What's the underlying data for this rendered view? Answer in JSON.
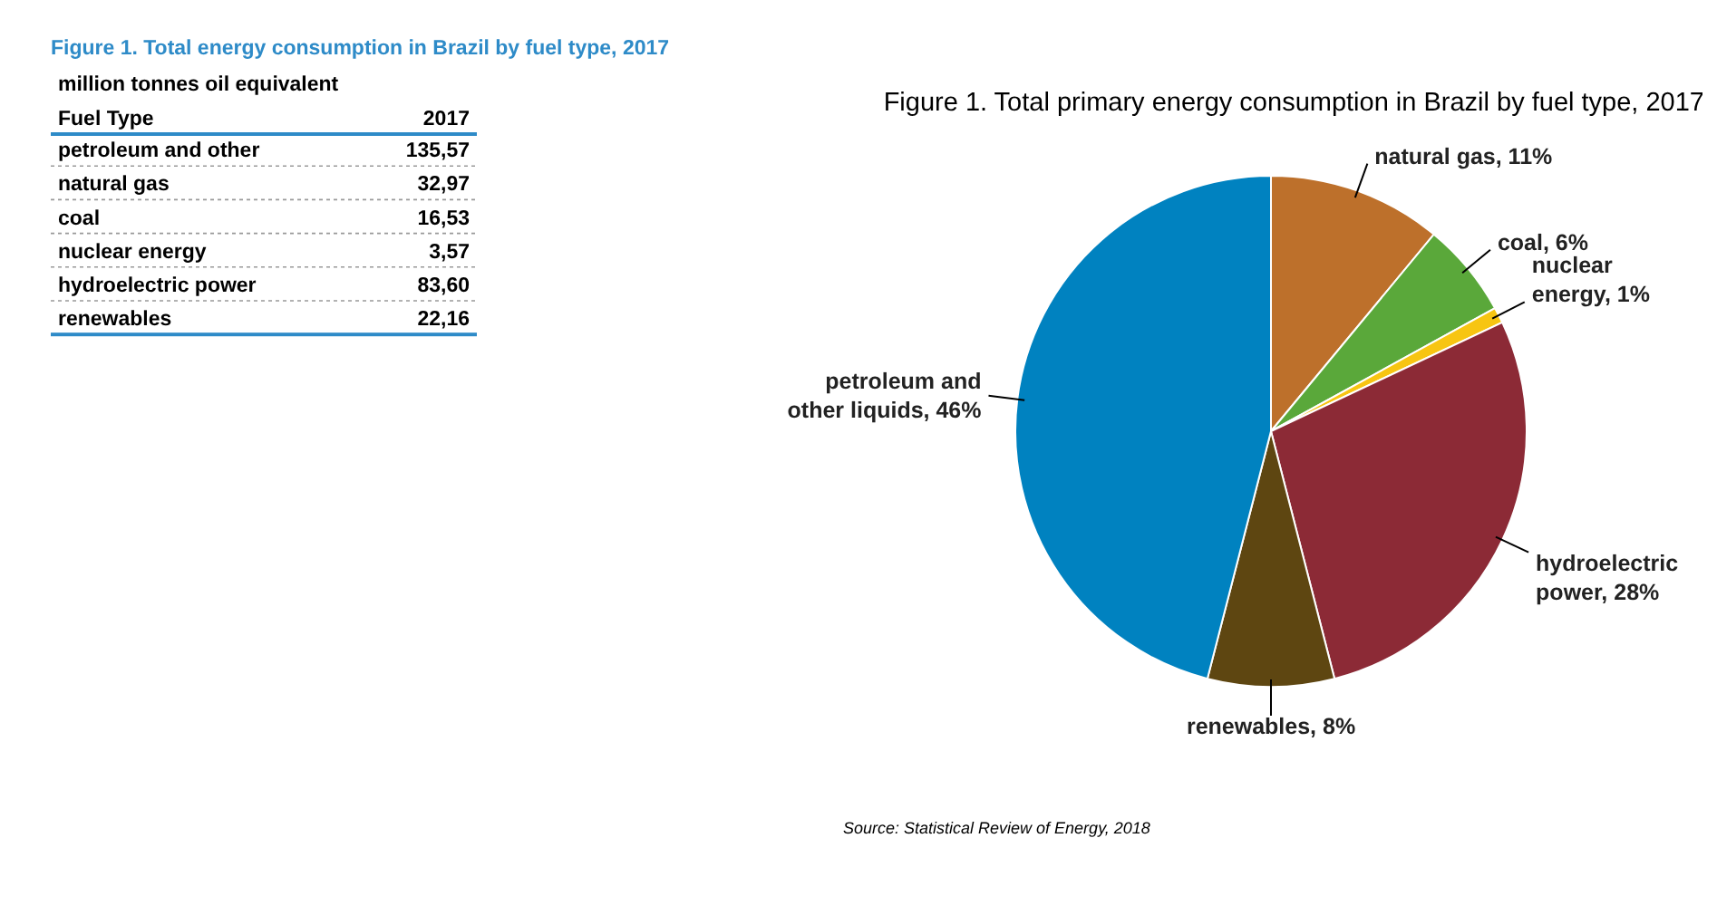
{
  "chart_data": [
    {
      "type": "other",
      "title": "Figure 1. Total energy consumption in Brazil by fuel type, 2017",
      "subtitle": "million tonnes oil equivalent",
      "xlabel": "Fuel Type",
      "ylabel": "2017",
      "categories": [
        "petroleum and other",
        "natural gas",
        "coal",
        "nuclear energy",
        "hydroelectric power",
        "renewables"
      ],
      "values": [
        135.57,
        32.97,
        16.53,
        3.57,
        83.6,
        22.16
      ],
      "value_labels": [
        "135,57",
        "32,97",
        "16,53",
        "3,57",
        "83,60",
        "22,16"
      ]
    },
    {
      "type": "pie",
      "title": "Figure 1. Total primary energy consumption in Brazil by fuel type, 2017",
      "categories": [
        "natural gas",
        "coal",
        "nuclear energy",
        "hydroelectric power",
        "renewables",
        "petroleum and other liquids"
      ],
      "values": [
        11,
        6,
        1,
        28,
        8,
        46
      ],
      "value_labels": [
        "11%",
        "6%",
        "1%",
        "28%",
        "8%",
        "46%"
      ],
      "colors": [
        "#bd702b",
        "#5aa83a",
        "#f7c512",
        "#8c2a36",
        "#5e4611",
        "#0082c0"
      ],
      "annotations": [
        "Source: Statistical Review of Energy, 2018"
      ]
    }
  ]
}
